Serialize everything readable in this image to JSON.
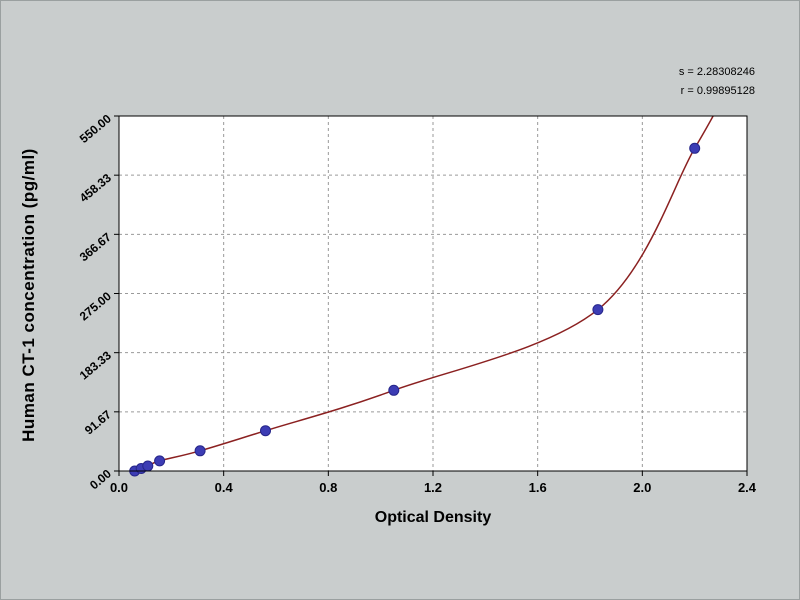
{
  "chart_data": {
    "type": "scatter",
    "title": "",
    "xlabel": "Optical Density",
    "ylabel": "Human CT-1 concentration (pg/ml)",
    "xlim": [
      0,
      2.4
    ],
    "ylim": [
      0,
      550
    ],
    "x_ticks": [
      0.0,
      0.4,
      0.8,
      1.2,
      1.6,
      2.0,
      2.4
    ],
    "x_tick_labels": [
      "0.0",
      "0.4",
      "0.8",
      "1.2",
      "1.6",
      "2.0",
      "2.4"
    ],
    "y_ticks": [
      0,
      91.67,
      183.33,
      275.0,
      366.67,
      458.33,
      550.0
    ],
    "y_tick_labels": [
      "0.00",
      "91.67",
      "183.33",
      "275.00",
      "366.67",
      "458.33",
      "550.00"
    ],
    "grid": true,
    "legend": "none",
    "series": [
      {
        "name": "standard-curve-points",
        "points": [
          [
            0.06,
            0
          ],
          [
            0.085,
            3.9
          ],
          [
            0.11,
            7.8
          ],
          [
            0.155,
            15.6
          ],
          [
            0.31,
            31.25
          ],
          [
            0.56,
            62.5
          ],
          [
            1.05,
            125
          ],
          [
            1.83,
            250
          ],
          [
            2.2,
            500
          ]
        ]
      }
    ],
    "fit_curve": {
      "pre_point": [
        0.04,
        -4
      ],
      "post_point": [
        2.31,
        580
      ]
    },
    "annotations": [
      "s = 2.28308246",
      "r = 0.99895128"
    ],
    "colors": {
      "point": "#3c3cb4",
      "point_edge": "#26268a",
      "curve": "#8b2121",
      "grid": "#9a9a9a",
      "background": "#c9cdcd",
      "plot_bg": "#ffffff",
      "text": "#000000"
    }
  }
}
